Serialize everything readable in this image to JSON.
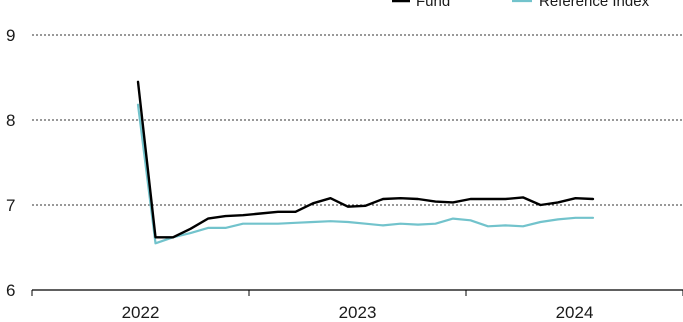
{
  "chart_data": {
    "type": "line",
    "title": "",
    "xlabel": "",
    "ylabel": "",
    "x_start": "2022-01",
    "x_ticks": [
      "2022",
      "2023",
      "2024"
    ],
    "ylim": [
      6,
      9
    ],
    "y_ticks": [
      6,
      7,
      8,
      9
    ],
    "grid": "horizontal dashed",
    "legend": "top-right",
    "series": [
      {
        "name": "Fund",
        "color": "#000000",
        "values": [
          8.45,
          6.62,
          6.62,
          6.72,
          6.84,
          6.87,
          6.88,
          6.9,
          6.92,
          6.92,
          7.02,
          7.08,
          6.98,
          6.99,
          7.07,
          7.08,
          7.07,
          7.04,
          7.03,
          7.07,
          7.07,
          7.07,
          7.09,
          7.0,
          7.03,
          7.08,
          7.07
        ]
      },
      {
        "name": "Reference Index",
        "color": "#72c3cc",
        "values": [
          8.18,
          6.55,
          6.62,
          6.67,
          6.73,
          6.73,
          6.78,
          6.78,
          6.78,
          6.79,
          6.8,
          6.81,
          6.8,
          6.78,
          6.76,
          6.78,
          6.77,
          6.78,
          6.84,
          6.82,
          6.75,
          6.76,
          6.75,
          6.8,
          6.83,
          6.85,
          6.85
        ]
      }
    ]
  }
}
